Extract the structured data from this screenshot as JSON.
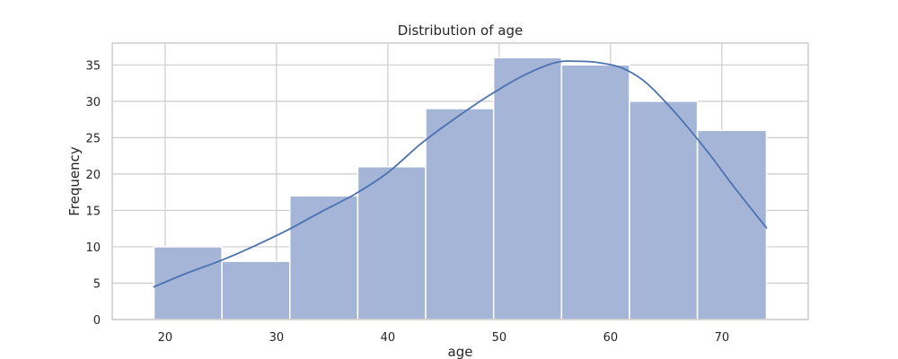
{
  "chart_data": {
    "type": "bar",
    "title": "Distribution of age",
    "xlabel": "age",
    "ylabel": "Frequency",
    "xlim": [
      15.25,
      77.75
    ],
    "ylim": [
      0,
      38
    ],
    "grid": true,
    "x_ticks": [
      20,
      30,
      40,
      50,
      60,
      70
    ],
    "y_ticks": [
      0,
      5,
      10,
      15,
      20,
      25,
      30,
      35
    ],
    "bins": [
      {
        "start": 19.0,
        "end": 25.1,
        "count": 10
      },
      {
        "start": 25.1,
        "end": 31.2,
        "count": 8
      },
      {
        "start": 31.2,
        "end": 37.3,
        "count": 17
      },
      {
        "start": 37.3,
        "end": 43.4,
        "count": 21
      },
      {
        "start": 43.4,
        "end": 49.5,
        "count": 29
      },
      {
        "start": 49.5,
        "end": 55.6,
        "count": 36
      },
      {
        "start": 55.6,
        "end": 61.7,
        "count": 35
      },
      {
        "start": 61.7,
        "end": 67.8,
        "count": 30
      },
      {
        "start": 67.8,
        "end": 74.0,
        "count": 26
      }
    ],
    "kde": {
      "x": [
        19,
        22,
        25,
        28,
        31,
        34,
        37,
        40,
        43,
        46,
        49,
        52,
        55,
        57,
        59,
        61,
        63,
        65,
        67,
        69,
        71,
        74
      ],
      "y": [
        4.5,
        6.4,
        8.1,
        10.1,
        12.3,
        14.8,
        17.2,
        20.2,
        24.2,
        27.6,
        30.7,
        33.4,
        35.3,
        35.5,
        35.3,
        34.6,
        32.8,
        29.8,
        26.3,
        22.5,
        18.4,
        12.6
      ]
    },
    "colors": {
      "bar_fill": "#a4b5d7",
      "bar_stroke": "#ffffff",
      "kde_line": "#4c72b0",
      "grid": "#cccccc",
      "axes_border": "#cccccc"
    }
  }
}
